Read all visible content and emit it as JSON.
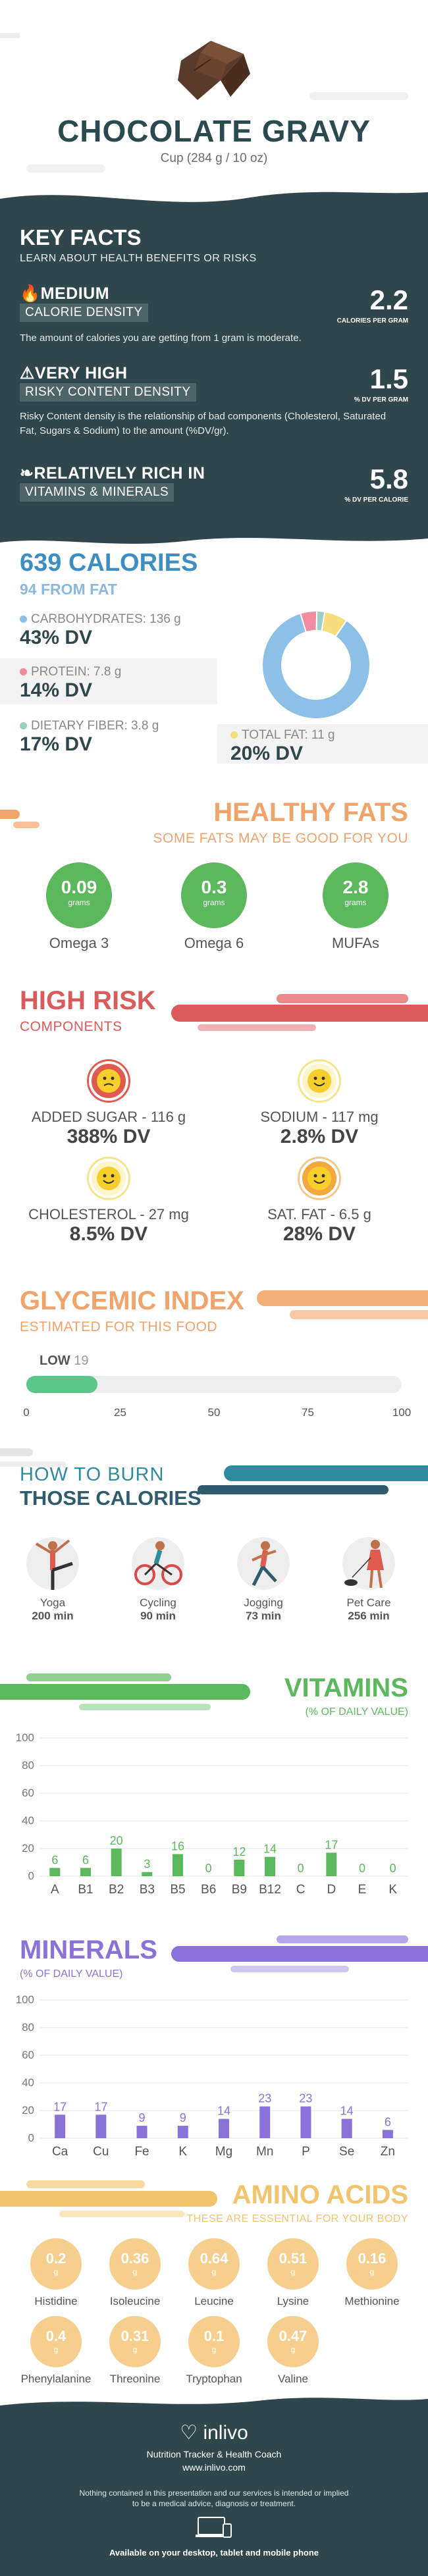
{
  "header": {
    "title": "CHOCOLATE GRAVY",
    "serving": "Cup (284 g / 10 oz)"
  },
  "key_facts": {
    "title": "KEY FACTS",
    "subtitle": "LEARN ABOUT HEALTH BENEFITS OR RISKS",
    "items": [
      {
        "level": "MEDIUM",
        "tag": "CALORIE DENSITY",
        "value": "2.2",
        "unit": "CALORIES PER GRAM",
        "desc": "The amount of calories you are getting from 1 gram is moderate.",
        "icon": "flame-icon"
      },
      {
        "level": "VERY HIGH",
        "tag": "RISKY CONTENT DENSITY",
        "value": "1.5",
        "unit": "% DV PER GRAM",
        "desc": "Risky Content density is the relationship of bad components (Cholesterol, Saturated Fat, Sugars & Sodium) to the amount (%DV/gr).",
        "icon": "warning-icon"
      },
      {
        "level": "RELATIVELY RICH  IN",
        "tag": "VITAMINS & MINERALS",
        "value": "5.8",
        "unit": "% DV PER CALORIE",
        "desc": "",
        "icon": "leaf-icon"
      }
    ]
  },
  "calories": {
    "total": "639 CALORIES",
    "from_fat": "94 FROM FAT",
    "nutrients": [
      {
        "label": "CARBOHYDRATES: 136 g",
        "dv": "43% DV",
        "color": "#8dc0e6"
      },
      {
        "label": "PROTEIN: 7.8 g",
        "dv": "14% DV",
        "color": "#f28ca0"
      },
      {
        "label": "DIETARY FIBER: 3.8 g",
        "dv": "17% DV",
        "color": "#9ad0c6"
      },
      {
        "label": "TOTAL FAT: 11 g",
        "dv": "20% DV",
        "color": "#f7dd7c"
      }
    ],
    "donut": [
      {
        "name": "carbohydrates",
        "grams": 136,
        "color": "#8dc0e6"
      },
      {
        "name": "protein",
        "grams": 7.8,
        "color": "#f28ca0"
      },
      {
        "name": "fiber",
        "grams": 3.8,
        "color": "#9ad0c6"
      },
      {
        "name": "fat",
        "grams": 11,
        "color": "#f7dd7c"
      }
    ]
  },
  "healthy_fats": {
    "title": "HEALTHY FATS",
    "subtitle": "SOME FATS MAY BE GOOD FOR YOU",
    "items": [
      {
        "value": "0.09",
        "unit": "grams",
        "name": "Omega 3"
      },
      {
        "value": "0.3",
        "unit": "grams",
        "name": "Omega 6"
      },
      {
        "value": "2.8",
        "unit": "grams",
        "name": "MUFAs"
      }
    ]
  },
  "high_risk": {
    "title": "HIGH RISK",
    "subtitle": "COMPONENTS",
    "items": [
      {
        "label": "ADDED SUGAR - 116 g",
        "dv": "388% DV",
        "face": "angry-face-icon",
        "color": "#e05a4e"
      },
      {
        "label": "SODIUM - 117 mg",
        "dv": "2.8% DV",
        "face": "happy-face-icon",
        "color": "#f7cf2a"
      },
      {
        "label": "CHOLESTEROL - 27 mg",
        "dv": "8.5% DV",
        "face": "happy-face-icon",
        "color": "#f7cf2a"
      },
      {
        "label": "SAT. FAT - 6.5 g",
        "dv": "28% DV",
        "face": "smile-face-icon",
        "color": "#f4a93e"
      }
    ]
  },
  "glycemic": {
    "title": "GLYCEMIC INDEX",
    "subtitle": "ESTIMATED FOR THIS FOOD",
    "level": "LOW",
    "value": "19",
    "fraction": 0.19,
    "ticks": [
      "0",
      "25",
      "50",
      "75",
      "100"
    ]
  },
  "burn": {
    "title1": "HOW TO BURN",
    "title2": "THOSE CALORIES",
    "activities": [
      {
        "name": "Yoga",
        "minutes": "200 min",
        "icon": "yoga-icon"
      },
      {
        "name": "Cycling",
        "minutes": "90 min",
        "icon": "cycling-icon"
      },
      {
        "name": "Jogging",
        "minutes": "73 min",
        "icon": "jogging-icon"
      },
      {
        "name": "Pet Care",
        "minutes": "256 min",
        "icon": "pet-care-icon"
      }
    ]
  },
  "vitamins": {
    "title": "VITAMINS",
    "subtitle": "(% OF DAILY VALUE)",
    "chart_data": {
      "type": "bar",
      "categories": [
        "A",
        "B1",
        "B2",
        "B3",
        "B5",
        "B6",
        "B9",
        "B12",
        "C",
        "D",
        "E",
        "K"
      ],
      "values": [
        6,
        6,
        20,
        3,
        16,
        0,
        12,
        14,
        0,
        17,
        0,
        0
      ],
      "ylim": [
        0,
        100
      ],
      "yticks": [
        "0",
        "20",
        "40",
        "60",
        "80",
        "100"
      ],
      "color": "#5cb85c"
    }
  },
  "minerals": {
    "title": "MINERALS",
    "subtitle": "(% OF DAILY VALUE)",
    "chart_data": {
      "type": "bar",
      "categories": [
        "Ca",
        "Cu",
        "Fe",
        "K",
        "Mg",
        "Mn",
        "P",
        "Se",
        "Zn"
      ],
      "values": [
        17,
        17,
        9,
        9,
        14,
        23,
        23,
        14,
        6
      ],
      "ylim": [
        0,
        100
      ],
      "yticks": [
        "0",
        "20",
        "40",
        "60",
        "80",
        "100"
      ],
      "color": "#8a72d9"
    }
  },
  "amino": {
    "title": "AMINO ACIDS",
    "subtitle": "THESE ARE ESSENTIAL FOR YOUR BODY",
    "items": [
      {
        "value": "0.2",
        "unit": "g",
        "name": "Histidine"
      },
      {
        "value": "0.36",
        "unit": "g",
        "name": "Isoleucine"
      },
      {
        "value": "0.64",
        "unit": "g",
        "name": "Leucine"
      },
      {
        "value": "0.51",
        "unit": "g",
        "name": "Lysine"
      },
      {
        "value": "0.16",
        "unit": "g",
        "name": "Methionine"
      },
      {
        "value": "0.4",
        "unit": "g",
        "name": "Phenylalanine"
      },
      {
        "value": "0.31",
        "unit": "g",
        "name": "Threonine"
      },
      {
        "value": "0.1",
        "unit": "g",
        "name": "Tryptophan"
      },
      {
        "value": "0.47",
        "unit": "g",
        "name": "Valine"
      }
    ]
  },
  "footer": {
    "brand": "inlivo",
    "tagline": "Nutrition Tracker & Health Coach",
    "url": "www.inlivo.com",
    "disclaimer1": "Nothing contained in this presentation and our services is intended or implied",
    "disclaimer2": "to be a medical advice, diagnosis or treatment.",
    "available": "Available on your desktop, tablet and mobile phone"
  },
  "colors": {
    "dark": "#2f474c",
    "orange": "#f0a36a",
    "red": "#d95b5b",
    "teal": "#2e8c9e",
    "green": "#5cb85c",
    "purple": "#8a72d9",
    "gold": "#f2c46d"
  }
}
